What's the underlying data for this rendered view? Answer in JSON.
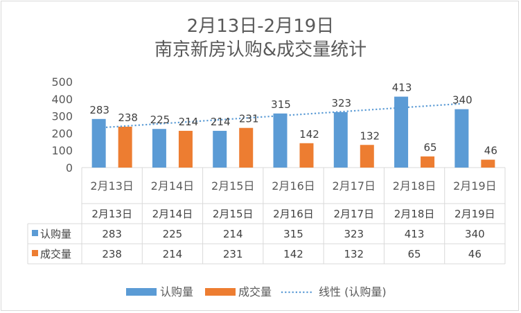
{
  "chart_data": {
    "type": "bar",
    "title_line1": "2月13日-2月19日",
    "title_line2": "南京新房认购&成交量统计",
    "categories": [
      "2月13日",
      "2月14日",
      "2月15日",
      "2月16日",
      "2月17日",
      "2月18日",
      "2月19日"
    ],
    "series": [
      {
        "name": "认购量",
        "color": "#5b9bd5",
        "values": [
          283,
          225,
          214,
          315,
          323,
          413,
          340
        ]
      },
      {
        "name": "成交量",
        "color": "#ed7d31",
        "values": [
          238,
          214,
          231,
          142,
          132,
          65,
          46
        ]
      }
    ],
    "trendline": {
      "name": "线性 (认购量)",
      "of_series": "认购量",
      "type": "linear",
      "style": "dotted",
      "color": "#5b9bd5"
    },
    "ylim": [
      0,
      500
    ],
    "yticks": [
      0,
      100,
      200,
      300,
      400,
      500
    ],
    "data_table": true,
    "legend_position": "bottom",
    "grid": false
  }
}
